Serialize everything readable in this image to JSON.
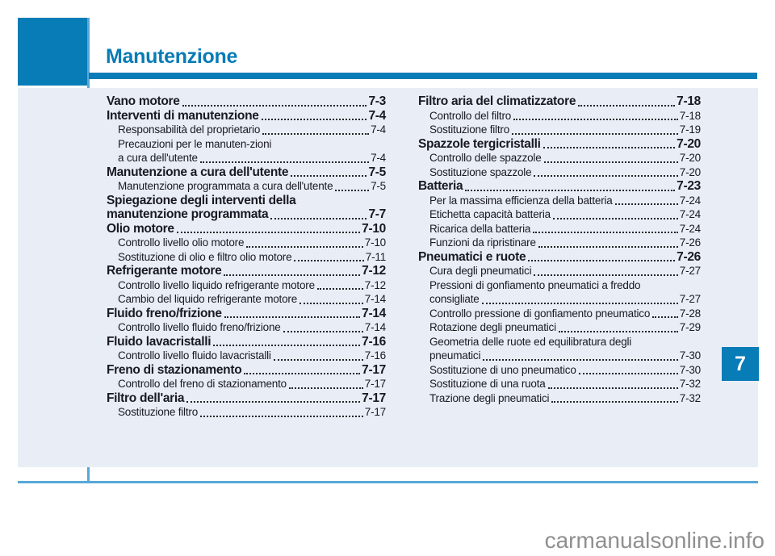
{
  "header": {
    "chapter_title": "Manutenzione",
    "chapter_number": "7"
  },
  "toc": {
    "columns": [
      {
        "rows": [
          {
            "label": "Vano motore",
            "page": "7-3",
            "style": "h",
            "leader": true
          },
          {
            "label": "Interventi di manutenzione",
            "page": "7-4",
            "style": "h",
            "leader": true
          },
          {
            "label": "Responsabilità del proprietario",
            "page": "7-4",
            "style": "sub",
            "leader": true
          },
          {
            "label": "Precauzioni per le manuten-zioni",
            "page": "",
            "style": "sub",
            "leader": false
          },
          {
            "label": "a cura dell'utente",
            "page": "7-4",
            "style": "sub",
            "leader": true
          },
          {
            "label": "Manutenzione a cura dell'utente",
            "page": "7-5",
            "style": "h",
            "leader": true
          },
          {
            "label": "Manutenzione programmata a cura dell'utente",
            "page": "7-5",
            "style": "sub",
            "leader": true
          },
          {
            "label": "Spiegazione degli interventi della",
            "page": "",
            "style": "h",
            "leader": false
          },
          {
            "label": "manutenzione programmata",
            "page": "7-7",
            "style": "h",
            "leader": true
          },
          {
            "label": "Olio motore",
            "page": "7-10",
            "style": "h",
            "leader": true
          },
          {
            "label": "Controllo livello olio motore",
            "page": "7-10",
            "style": "sub",
            "leader": true
          },
          {
            "label": "Sostituzione di olio e filtro olio motore",
            "page": "7-11",
            "style": "sub",
            "leader": true
          },
          {
            "label": "Refrigerante motore",
            "page": "7-12",
            "style": "h",
            "leader": true
          },
          {
            "label": "Controllo livello liquido refrigerante motore",
            "page": "7-12",
            "style": "sub",
            "leader": true
          },
          {
            "label": "Cambio del liquido refrigerante motore",
            "page": "7-14",
            "style": "sub",
            "leader": true
          },
          {
            "label": "Fluido freno/frizione",
            "page": "7-14",
            "style": "h",
            "leader": true
          },
          {
            "label": "Controllo livello fluido freno/frizione",
            "page": "7-14",
            "style": "sub",
            "leader": true
          },
          {
            "label": "Fluido lavacristalli",
            "page": "7-16",
            "style": "h",
            "leader": true
          },
          {
            "label": "Controllo livello fluido lavacristalli",
            "page": "7-16",
            "style": "sub",
            "leader": true
          },
          {
            "label": "Freno di stazionamento",
            "page": "7-17",
            "style": "h",
            "leader": true
          },
          {
            "label": "Controllo del freno di stazionamento",
            "page": "7-17",
            "style": "sub",
            "leader": true
          },
          {
            "label": "Filtro dell'aria",
            "page": "7-17",
            "style": "h",
            "leader": true
          },
          {
            "label": "Sostituzione filtro",
            "page": "7-17",
            "style": "sub",
            "leader": true
          }
        ]
      },
      {
        "rows": [
          {
            "label": "Filtro aria del climatizzatore",
            "page": "7-18",
            "style": "h",
            "leader": true
          },
          {
            "label": "Controllo del filtro",
            "page": "7-18",
            "style": "sub",
            "leader": true
          },
          {
            "label": "Sostituzione filtro",
            "page": "7-19",
            "style": "sub",
            "leader": true
          },
          {
            "label": "Spazzole tergicristalli",
            "page": "7-20",
            "style": "h",
            "leader": true
          },
          {
            "label": "Controllo delle spazzole",
            "page": "7-20",
            "style": "sub",
            "leader": true
          },
          {
            "label": "Sostituzione spazzole",
            "page": "7-20",
            "style": "sub",
            "leader": true
          },
          {
            "label": "Batteria",
            "page": "7-23",
            "style": "h",
            "leader": true
          },
          {
            "label": "Per la massima efficienza della batteria",
            "page": "7-24",
            "style": "sub",
            "leader": true
          },
          {
            "label": "Etichetta capacità batteria",
            "page": "7-24",
            "style": "sub",
            "leader": true
          },
          {
            "label": "Ricarica della batteria",
            "page": "7-24",
            "style": "sub",
            "leader": true
          },
          {
            "label": "Funzioni da ripristinare",
            "page": "7-26",
            "style": "sub",
            "leader": true
          },
          {
            "label": "Pneumatici e ruote",
            "page": "7-26",
            "style": "h",
            "leader": true
          },
          {
            "label": "Cura degli pneumatici",
            "page": "7-27",
            "style": "sub",
            "leader": true
          },
          {
            "label": "Pressioni di gonfiamento pneumatici a freddo",
            "page": "",
            "style": "sub",
            "leader": false
          },
          {
            "label": "consigliate",
            "page": "7-27",
            "style": "sub",
            "leader": true
          },
          {
            "label": "Controllo pressione di gonfiamento pneumatico",
            "page": "7-28",
            "style": "sub",
            "leader": true
          },
          {
            "label": "Rotazione degli pneumatici",
            "page": "7-29",
            "style": "sub",
            "leader": true
          },
          {
            "label": "Geometria delle ruote ed equilibratura degli",
            "page": "",
            "style": "sub",
            "leader": false
          },
          {
            "label": "pneumatici",
            "page": "7-30",
            "style": "sub",
            "leader": true
          },
          {
            "label": "Sostituzione di uno pneumatico",
            "page": "7-30",
            "style": "sub",
            "leader": true
          },
          {
            "label": "Sostituzione di una ruota",
            "page": "7-32",
            "style": "sub",
            "leader": true
          },
          {
            "label": "Trazione degli pneumatici",
            "page": "7-32",
            "style": "sub",
            "leader": true
          }
        ]
      }
    ]
  },
  "watermark": "carmanualsonline.info",
  "colors": {
    "accent_blue": "#087cb6",
    "light_blue": "#58a8d7",
    "panel_bg": "#e9eef6",
    "text_dark": "#191922",
    "watermark_gray": "#8f8f8f"
  }
}
